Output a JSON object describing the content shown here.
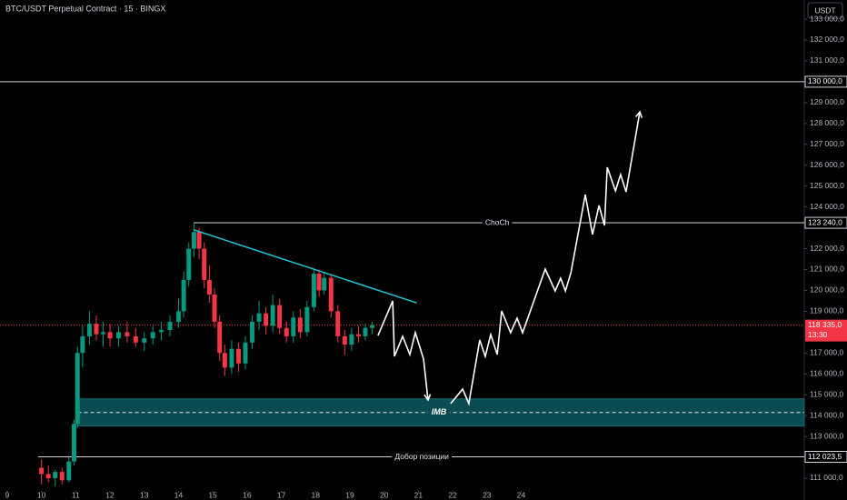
{
  "chart_data": {
    "type": "candlestick",
    "title": "BTC/USDT Perpetual Contract · 15 · BINGX",
    "currency": "USDT",
    "up_color": "#089981",
    "down_color": "#f23645",
    "xlim": [
      8.79,
      32.26
    ],
    "ylim": [
      110390,
      133917
    ],
    "xticks": [
      9,
      10,
      11,
      12,
      13,
      14,
      15,
      16,
      17,
      18,
      19,
      20,
      21,
      22,
      23,
      24
    ],
    "yticks": [
      {
        "value": 111000,
        "label": "111 000,0"
      },
      {
        "value": 113000,
        "label": "113 000,0"
      },
      {
        "value": 114000,
        "label": "114 000,0"
      },
      {
        "value": 115000,
        "label": "115 000,0"
      },
      {
        "value": 116000,
        "label": "116 000,0"
      },
      {
        "value": 117000,
        "label": "117 000,0"
      },
      {
        "value": 119000,
        "label": "119 000,0"
      },
      {
        "value": 120000,
        "label": "120 000,0"
      },
      {
        "value": 121000,
        "label": "121 000,0"
      },
      {
        "value": 122000,
        "label": "122 000,0"
      },
      {
        "value": 124000,
        "label": "124 000,0"
      },
      {
        "value": 125000,
        "label": "125 000,0"
      },
      {
        "value": 126000,
        "label": "126 000,0"
      },
      {
        "value": 127000,
        "label": "127 000,0"
      },
      {
        "value": 128000,
        "label": "128 000,0"
      },
      {
        "value": 129000,
        "label": "129 000,0"
      },
      {
        "value": 131000,
        "label": "131 000,0"
      },
      {
        "value": 132000,
        "label": "132 000,0"
      },
      {
        "value": 133000,
        "label": "133 000,0"
      }
    ],
    "x": [
      10.0,
      10.2,
      10.4,
      10.6,
      10.8,
      10.95,
      11.05,
      11.2,
      11.4,
      11.6,
      11.8,
      12.0,
      12.25,
      12.5,
      12.75,
      13.0,
      13.25,
      13.5,
      13.75,
      14.0,
      14.15,
      14.3,
      14.45,
      14.6,
      14.75,
      14.9,
      15.05,
      15.2,
      15.35,
      15.55,
      15.75,
      15.95,
      16.15,
      16.35,
      16.55,
      16.75,
      16.95,
      17.15,
      17.35,
      17.55,
      17.75,
      17.95,
      18.1,
      18.25,
      18.45,
      18.65,
      18.85,
      19.05,
      19.25,
      19.45,
      19.65
    ],
    "open": [
      111500,
      111200,
      111000,
      111300,
      110900,
      111800,
      113600,
      117000,
      117800,
      118400,
      117900,
      118000,
      117700,
      118000,
      117800,
      117500,
      117700,
      118000,
      118100,
      118500,
      119000,
      120500,
      122000,
      122800,
      122000,
      120500,
      119800,
      118500,
      117000,
      116300,
      117200,
      116500,
      117500,
      118500,
      118900,
      118300,
      119300,
      118200,
      117800,
      118700,
      118000,
      119200,
      120800,
      120000,
      120600,
      119000,
      117800,
      117400,
      117900,
      117800,
      118200
    ],
    "high": [
      111900,
      111600,
      111400,
      111500,
      112000,
      113800,
      117300,
      118300,
      119000,
      118800,
      118500,
      118400,
      118300,
      118500,
      118200,
      118000,
      118300,
      118500,
      118800,
      119600,
      120900,
      122300,
      123240,
      123000,
      122300,
      121200,
      120100,
      118800,
      117400,
      117600,
      117500,
      117800,
      118800,
      119500,
      119200,
      119800,
      119600,
      118500,
      119000,
      119100,
      119500,
      121000,
      121000,
      120900,
      120800,
      119300,
      118100,
      118200,
      118300,
      118400,
      118500
    ],
    "low": [
      110700,
      110800,
      110600,
      110700,
      110800,
      111600,
      113400,
      116300,
      117400,
      117600,
      117300,
      117300,
      117300,
      117500,
      117300,
      117100,
      117400,
      117600,
      117800,
      118200,
      118700,
      120200,
      121600,
      121500,
      120100,
      119400,
      118200,
      116600,
      115900,
      116000,
      116100,
      116200,
      117200,
      118100,
      117900,
      118000,
      117900,
      117500,
      117500,
      117700,
      117800,
      119000,
      119700,
      119800,
      118700,
      117500,
      116900,
      117100,
      117500,
      117600,
      117900
    ],
    "close": [
      111200,
      111000,
      111300,
      110900,
      111800,
      113600,
      117000,
      117800,
      118400,
      117900,
      118000,
      117700,
      118000,
      117800,
      117500,
      117700,
      118000,
      118100,
      118500,
      119000,
      120500,
      122000,
      122800,
      122000,
      120500,
      119800,
      118500,
      117000,
      116300,
      117200,
      116500,
      117500,
      118500,
      118900,
      118300,
      119300,
      118200,
      117800,
      118700,
      118000,
      119200,
      120800,
      120000,
      120600,
      119000,
      117800,
      117400,
      117900,
      117800,
      118200,
      118335
    ],
    "levels": [
      {
        "value": 130000,
        "label": "130 000,0",
        "start": 8.79
      },
      {
        "value": 123240,
        "label": "123 240,0",
        "start": 14.44,
        "text": "ChoCh",
        "text_x": 23.3
      },
      {
        "value": 112023.5,
        "label": "112 023,5",
        "start": 9.9,
        "text": "Добор позиции",
        "text_x": 21.1
      }
    ],
    "current_price": {
      "value": 118335,
      "label": "118 335,0",
      "countdown": "13:30"
    },
    "zone": {
      "start": 11.06,
      "top": 114800,
      "bottom": 113500,
      "mid": 114150,
      "label": "IMB",
      "text_x": 21.6
    },
    "trendline": {
      "x": [
        14.45,
        20.95
      ],
      "y": [
        122900,
        119400
      ],
      "color": "#22c5d8"
    },
    "projection": [
      {
        "x": [
          19.82,
          20.25,
          20.3,
          20.54,
          20.75,
          20.91,
          21.15,
          21.28
        ],
        "y": [
          117840,
          119496,
          116838,
          117797,
          116926,
          117971,
          116708,
          114747
        ]
      },
      {
        "x": [
          21.94,
          22.29,
          22.47,
          22.79,
          22.95,
          23.11,
          23.3,
          23.43,
          23.69,
          23.88,
          24.04,
          24.7,
          24.99,
          25.15,
          25.29,
          25.45,
          25.87,
          26.08,
          26.27,
          26.43,
          26.51,
          26.75,
          26.9,
          27.06,
          27.46
        ],
        "y": [
          114573,
          115270,
          114573,
          117623,
          116838,
          117884,
          116926,
          119017,
          117971,
          118668,
          117971,
          121021,
          119975,
          120585,
          119975,
          120847,
          124594,
          122677,
          124071,
          123112,
          125901,
          124768,
          125552,
          124725,
          128559
        ]
      }
    ]
  }
}
